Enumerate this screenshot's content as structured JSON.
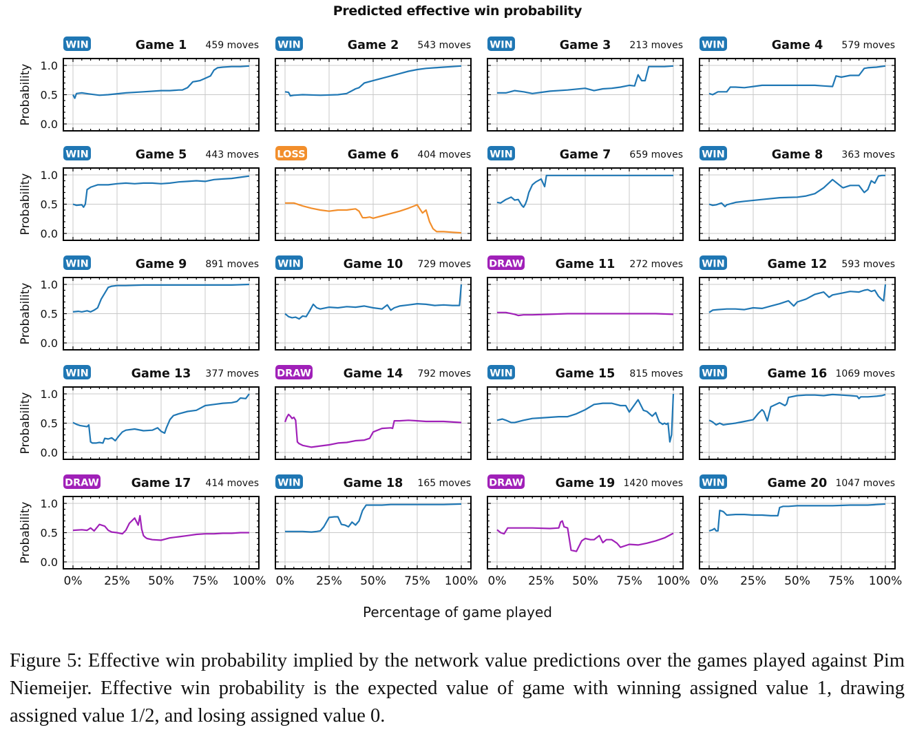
{
  "chart_data": {
    "type": "line",
    "title": "Predicted effective win probability",
    "xlabel": "Percentage of game played",
    "ylabel": "Probability",
    "xlim": [
      0,
      100
    ],
    "ylim": [
      0,
      1
    ],
    "xticks": [
      0,
      25,
      50,
      75,
      100
    ],
    "xtick_labels": [
      "0%",
      "25%",
      "50%",
      "75%",
      "100%"
    ],
    "yticks": [
      0,
      0.5,
      1
    ],
    "ytick_labels": [
      "0.0",
      "0.5",
      "1.0"
    ],
    "grid": true,
    "layout": "5 rows x 4 columns",
    "result_colors": {
      "WIN": "#1f77b4",
      "LOSS": "#f28e2b",
      "DRAW": "#a020b8"
    },
    "panels": [
      {
        "game": "Game 1",
        "result": "WIN",
        "moves": "459 moves",
        "x": [
          0,
          1,
          2,
          5,
          10,
          15,
          20,
          30,
          40,
          50,
          55,
          60,
          62,
          65,
          68,
          70,
          72,
          75,
          78,
          80,
          82,
          85,
          90,
          95,
          100
        ],
        "y": [
          0.5,
          0.44,
          0.52,
          0.53,
          0.51,
          0.49,
          0.5,
          0.53,
          0.55,
          0.57,
          0.57,
          0.58,
          0.58,
          0.62,
          0.72,
          0.73,
          0.74,
          0.78,
          0.82,
          0.92,
          0.96,
          0.97,
          0.98,
          0.98,
          0.99
        ]
      },
      {
        "game": "Game 2",
        "result": "WIN",
        "moves": "543 moves",
        "x": [
          0,
          2,
          3,
          5,
          10,
          20,
          30,
          35,
          40,
          42,
          45,
          50,
          55,
          60,
          65,
          70,
          75,
          80,
          85,
          90,
          95,
          100
        ],
        "y": [
          0.55,
          0.54,
          0.48,
          0.49,
          0.5,
          0.49,
          0.5,
          0.52,
          0.6,
          0.62,
          0.7,
          0.74,
          0.78,
          0.82,
          0.86,
          0.9,
          0.93,
          0.95,
          0.96,
          0.97,
          0.98,
          0.99
        ]
      },
      {
        "game": "Game 3",
        "result": "WIN",
        "moves": "213 moves",
        "x": [
          0,
          5,
          10,
          15,
          20,
          25,
          30,
          40,
          50,
          55,
          60,
          65,
          70,
          75,
          78,
          80,
          82,
          84,
          86,
          88,
          90,
          95,
          100
        ],
        "y": [
          0.53,
          0.53,
          0.57,
          0.55,
          0.52,
          0.54,
          0.56,
          0.58,
          0.61,
          0.57,
          0.6,
          0.61,
          0.63,
          0.66,
          0.65,
          0.84,
          0.74,
          0.74,
          0.98,
          0.98,
          0.98,
          0.98,
          0.99
        ]
      },
      {
        "game": "Game 4",
        "result": "WIN",
        "moves": "579 moves",
        "x": [
          0,
          2,
          5,
          10,
          12,
          15,
          20,
          25,
          30,
          40,
          50,
          60,
          65,
          70,
          72,
          75,
          80,
          85,
          88,
          90,
          95,
          100
        ],
        "y": [
          0.52,
          0.5,
          0.55,
          0.55,
          0.63,
          0.63,
          0.62,
          0.64,
          0.66,
          0.66,
          0.66,
          0.66,
          0.65,
          0.64,
          0.82,
          0.8,
          0.83,
          0.83,
          0.95,
          0.96,
          0.97,
          0.99
        ]
      },
      {
        "game": "Game 5",
        "result": "WIN",
        "moves": "443 moves",
        "x": [
          0,
          2,
          5,
          6,
          7,
          8,
          10,
          12,
          14,
          20,
          25,
          30,
          35,
          40,
          45,
          50,
          55,
          60,
          65,
          70,
          75,
          80,
          85,
          90,
          95,
          100
        ],
        "y": [
          0.5,
          0.48,
          0.49,
          0.45,
          0.5,
          0.75,
          0.79,
          0.81,
          0.83,
          0.83,
          0.85,
          0.86,
          0.85,
          0.86,
          0.86,
          0.85,
          0.86,
          0.88,
          0.89,
          0.9,
          0.89,
          0.92,
          0.93,
          0.94,
          0.96,
          0.98
        ]
      },
      {
        "game": "Game 6",
        "result": "LOSS",
        "moves": "404 moves",
        "x": [
          0,
          5,
          10,
          15,
          20,
          25,
          30,
          35,
          40,
          42,
          44,
          46,
          48,
          50,
          55,
          60,
          65,
          70,
          75,
          76,
          78,
          80,
          82,
          84,
          86,
          88,
          90,
          95,
          100
        ],
        "y": [
          0.52,
          0.52,
          0.47,
          0.43,
          0.4,
          0.38,
          0.4,
          0.4,
          0.42,
          0.38,
          0.27,
          0.27,
          0.28,
          0.26,
          0.3,
          0.34,
          0.38,
          0.43,
          0.49,
          0.44,
          0.35,
          0.4,
          0.2,
          0.08,
          0.03,
          0.03,
          0.03,
          0.02,
          0.01
        ]
      },
      {
        "game": "Game 7",
        "result": "WIN",
        "moves": "659 moves",
        "x": [
          0,
          2,
          5,
          8,
          10,
          12,
          14,
          15,
          16,
          17,
          18,
          20,
          22,
          25,
          27,
          28,
          30,
          40,
          50,
          60,
          70,
          80,
          90,
          100
        ],
        "y": [
          0.53,
          0.52,
          0.58,
          0.62,
          0.57,
          0.58,
          0.48,
          0.45,
          0.5,
          0.58,
          0.7,
          0.83,
          0.88,
          0.93,
          0.8,
          0.99,
          0.99,
          0.99,
          0.99,
          0.99,
          0.99,
          0.99,
          0.99,
          0.99
        ]
      },
      {
        "game": "Game 8",
        "result": "WIN",
        "moves": "363 moves",
        "x": [
          0,
          2,
          4,
          7,
          9,
          10,
          15,
          20,
          30,
          40,
          50,
          55,
          60,
          65,
          70,
          75,
          76,
          80,
          85,
          88,
          90,
          92,
          94,
          96,
          98,
          100
        ],
        "y": [
          0.5,
          0.48,
          0.49,
          0.52,
          0.46,
          0.49,
          0.53,
          0.55,
          0.58,
          0.61,
          0.62,
          0.64,
          0.68,
          0.78,
          0.92,
          0.8,
          0.78,
          0.82,
          0.82,
          0.7,
          0.75,
          0.9,
          0.86,
          0.98,
          0.99,
          0.99
        ]
      },
      {
        "game": "Game 9",
        "result": "WIN",
        "moves": "891 moves",
        "x": [
          0,
          3,
          5,
          8,
          10,
          12,
          14,
          16,
          18,
          20,
          22,
          25,
          30,
          40,
          50,
          60,
          70,
          80,
          90,
          100
        ],
        "y": [
          0.53,
          0.54,
          0.53,
          0.55,
          0.53,
          0.56,
          0.6,
          0.75,
          0.85,
          0.95,
          0.97,
          0.98,
          0.98,
          0.99,
          0.99,
          0.99,
          0.99,
          0.99,
          0.99,
          1.0
        ]
      },
      {
        "game": "Game 10",
        "result": "WIN",
        "moves": "729 moves",
        "x": [
          0,
          2,
          4,
          6,
          8,
          10,
          12,
          14,
          16,
          18,
          20,
          25,
          30,
          35,
          40,
          45,
          50,
          55,
          58,
          60,
          62,
          65,
          70,
          75,
          80,
          85,
          90,
          95,
          99,
          100
        ],
        "y": [
          0.5,
          0.45,
          0.43,
          0.44,
          0.41,
          0.46,
          0.45,
          0.55,
          0.66,
          0.6,
          0.58,
          0.61,
          0.6,
          0.62,
          0.61,
          0.63,
          0.6,
          0.58,
          0.65,
          0.56,
          0.6,
          0.63,
          0.65,
          0.67,
          0.66,
          0.64,
          0.65,
          0.64,
          0.64,
          1.0
        ]
      },
      {
        "game": "Game 11",
        "result": "DRAW",
        "moves": "272 moves",
        "x": [
          0,
          5,
          10,
          12,
          15,
          20,
          30,
          40,
          50,
          60,
          70,
          80,
          90,
          100
        ],
        "y": [
          0.52,
          0.52,
          0.49,
          0.47,
          0.48,
          0.48,
          0.49,
          0.5,
          0.5,
          0.5,
          0.5,
          0.5,
          0.5,
          0.49
        ]
      },
      {
        "game": "Game 12",
        "result": "WIN",
        "moves": "593 moves",
        "x": [
          0,
          2,
          5,
          10,
          15,
          20,
          25,
          30,
          35,
          40,
          45,
          48,
          50,
          55,
          60,
          65,
          68,
          70,
          75,
          80,
          85,
          88,
          90,
          92,
          94,
          96,
          98,
          99,
          100
        ],
        "y": [
          0.52,
          0.56,
          0.57,
          0.58,
          0.58,
          0.57,
          0.6,
          0.59,
          0.63,
          0.67,
          0.72,
          0.63,
          0.7,
          0.75,
          0.83,
          0.87,
          0.78,
          0.82,
          0.85,
          0.88,
          0.87,
          0.9,
          0.91,
          0.88,
          0.9,
          0.8,
          0.74,
          0.72,
          1.0
        ]
      },
      {
        "game": "Game 13",
        "result": "WIN",
        "moves": "377 moves",
        "x": [
          0,
          2,
          4,
          6,
          8,
          9,
          10,
          11,
          13,
          15,
          17,
          18,
          20,
          22,
          24,
          26,
          28,
          30,
          35,
          40,
          45,
          48,
          50,
          52,
          53,
          55,
          57,
          60,
          65,
          70,
          75,
          80,
          85,
          90,
          93,
          95,
          98,
          100
        ],
        "y": [
          0.51,
          0.48,
          0.46,
          0.45,
          0.44,
          0.47,
          0.18,
          0.16,
          0.16,
          0.17,
          0.16,
          0.24,
          0.23,
          0.25,
          0.2,
          0.28,
          0.35,
          0.38,
          0.4,
          0.37,
          0.38,
          0.42,
          0.36,
          0.33,
          0.42,
          0.56,
          0.63,
          0.66,
          0.7,
          0.72,
          0.8,
          0.82,
          0.84,
          0.85,
          0.87,
          0.93,
          0.92,
          1.0
        ]
      },
      {
        "game": "Game 14",
        "result": "DRAW",
        "moves": "792 moves",
        "x": [
          0,
          1,
          2,
          3,
          4,
          5,
          6,
          7,
          8,
          10,
          15,
          20,
          25,
          30,
          35,
          40,
          45,
          48,
          50,
          55,
          60,
          61,
          62,
          65,
          70,
          75,
          80,
          90,
          100
        ],
        "y": [
          0.52,
          0.6,
          0.65,
          0.62,
          0.58,
          0.6,
          0.55,
          0.18,
          0.15,
          0.12,
          0.09,
          0.11,
          0.13,
          0.16,
          0.17,
          0.2,
          0.21,
          0.24,
          0.35,
          0.41,
          0.42,
          0.41,
          0.54,
          0.54,
          0.55,
          0.54,
          0.53,
          0.53,
          0.51
        ]
      },
      {
        "game": "Game 15",
        "result": "WIN",
        "moves": "815 moves",
        "x": [
          0,
          3,
          5,
          8,
          10,
          15,
          20,
          25,
          30,
          35,
          40,
          45,
          50,
          55,
          60,
          65,
          70,
          73,
          75,
          80,
          83,
          85,
          88,
          90,
          92,
          94,
          95,
          96,
          97,
          98,
          99,
          100
        ],
        "y": [
          0.55,
          0.57,
          0.55,
          0.51,
          0.51,
          0.55,
          0.58,
          0.59,
          0.6,
          0.61,
          0.61,
          0.66,
          0.73,
          0.82,
          0.84,
          0.84,
          0.8,
          0.8,
          0.69,
          0.9,
          0.72,
          0.7,
          0.62,
          0.68,
          0.52,
          0.48,
          0.5,
          0.48,
          0.5,
          0.18,
          0.3,
          1.0
        ]
      },
      {
        "game": "Game 16",
        "result": "WIN",
        "moves": "1069 moves",
        "x": [
          0,
          2,
          4,
          6,
          8,
          10,
          15,
          20,
          25,
          28,
          30,
          31,
          33,
          35,
          40,
          43,
          44,
          45,
          50,
          55,
          60,
          65,
          70,
          75,
          80,
          84,
          85,
          86,
          90,
          95,
          98,
          100
        ],
        "y": [
          0.55,
          0.52,
          0.47,
          0.5,
          0.47,
          0.48,
          0.5,
          0.53,
          0.56,
          0.67,
          0.73,
          0.7,
          0.54,
          0.78,
          0.85,
          0.8,
          0.83,
          0.94,
          0.97,
          0.98,
          0.98,
          0.97,
          0.99,
          0.98,
          0.97,
          0.96,
          0.92,
          0.95,
          0.95,
          0.96,
          0.97,
          0.99
        ]
      },
      {
        "game": "Game 17",
        "result": "DRAW",
        "moves": "414 moves",
        "x": [
          0,
          5,
          8,
          10,
          12,
          15,
          18,
          20,
          22,
          25,
          28,
          30,
          32,
          35,
          37,
          38,
          39,
          40,
          41,
          42,
          45,
          50,
          55,
          60,
          65,
          70,
          75,
          80,
          85,
          90,
          95,
          100
        ],
        "y": [
          0.54,
          0.55,
          0.54,
          0.58,
          0.53,
          0.64,
          0.61,
          0.54,
          0.51,
          0.5,
          0.48,
          0.54,
          0.66,
          0.75,
          0.63,
          0.79,
          0.56,
          0.45,
          0.42,
          0.4,
          0.38,
          0.37,
          0.41,
          0.43,
          0.45,
          0.47,
          0.48,
          0.48,
          0.49,
          0.49,
          0.5,
          0.5
        ]
      },
      {
        "game": "Game 18",
        "result": "WIN",
        "moves": "165 moves",
        "x": [
          0,
          5,
          10,
          15,
          18,
          20,
          22,
          25,
          28,
          30,
          32,
          34,
          36,
          38,
          40,
          42,
          44,
          46,
          48,
          50,
          55,
          60,
          70,
          80,
          90,
          100
        ],
        "y": [
          0.52,
          0.52,
          0.52,
          0.51,
          0.52,
          0.53,
          0.6,
          0.76,
          0.77,
          0.77,
          0.64,
          0.63,
          0.6,
          0.68,
          0.63,
          0.7,
          0.88,
          0.97,
          0.97,
          0.97,
          0.97,
          0.98,
          0.98,
          0.98,
          0.98,
          0.99
        ]
      },
      {
        "game": "Game 19",
        "result": "DRAW",
        "moves": "1420 moves",
        "x": [
          0,
          2,
          4,
          6,
          8,
          10,
          20,
          30,
          35,
          36,
          37,
          38,
          40,
          42,
          45,
          48,
          50,
          53,
          55,
          58,
          60,
          62,
          65,
          68,
          70,
          75,
          80,
          85,
          90,
          95,
          100
        ],
        "y": [
          0.55,
          0.5,
          0.48,
          0.58,
          0.58,
          0.58,
          0.58,
          0.57,
          0.58,
          0.68,
          0.7,
          0.6,
          0.58,
          0.2,
          0.18,
          0.36,
          0.4,
          0.38,
          0.38,
          0.45,
          0.33,
          0.38,
          0.38,
          0.32,
          0.25,
          0.3,
          0.29,
          0.32,
          0.36,
          0.41,
          0.49
        ]
      },
      {
        "game": "Game 20",
        "result": "WIN",
        "moves": "1047 moves",
        "x": [
          0,
          2,
          3,
          4,
          5,
          6,
          8,
          10,
          15,
          20,
          25,
          30,
          35,
          39,
          40,
          42,
          45,
          50,
          60,
          70,
          80,
          85,
          90,
          95,
          100
        ],
        "y": [
          0.53,
          0.55,
          0.57,
          0.53,
          0.53,
          0.88,
          0.86,
          0.8,
          0.81,
          0.81,
          0.8,
          0.8,
          0.79,
          0.79,
          0.93,
          0.95,
          0.95,
          0.96,
          0.96,
          0.96,
          0.97,
          0.97,
          0.97,
          0.98,
          0.99
        ]
      }
    ]
  },
  "caption": "Figure 5: Effective win probability implied by the network value predictions over the games played against Pim Niemeijer.  Effective win probability is the expected value of game with winning assigned value 1, drawing assigned value 1/2, and losing assigned value 0."
}
